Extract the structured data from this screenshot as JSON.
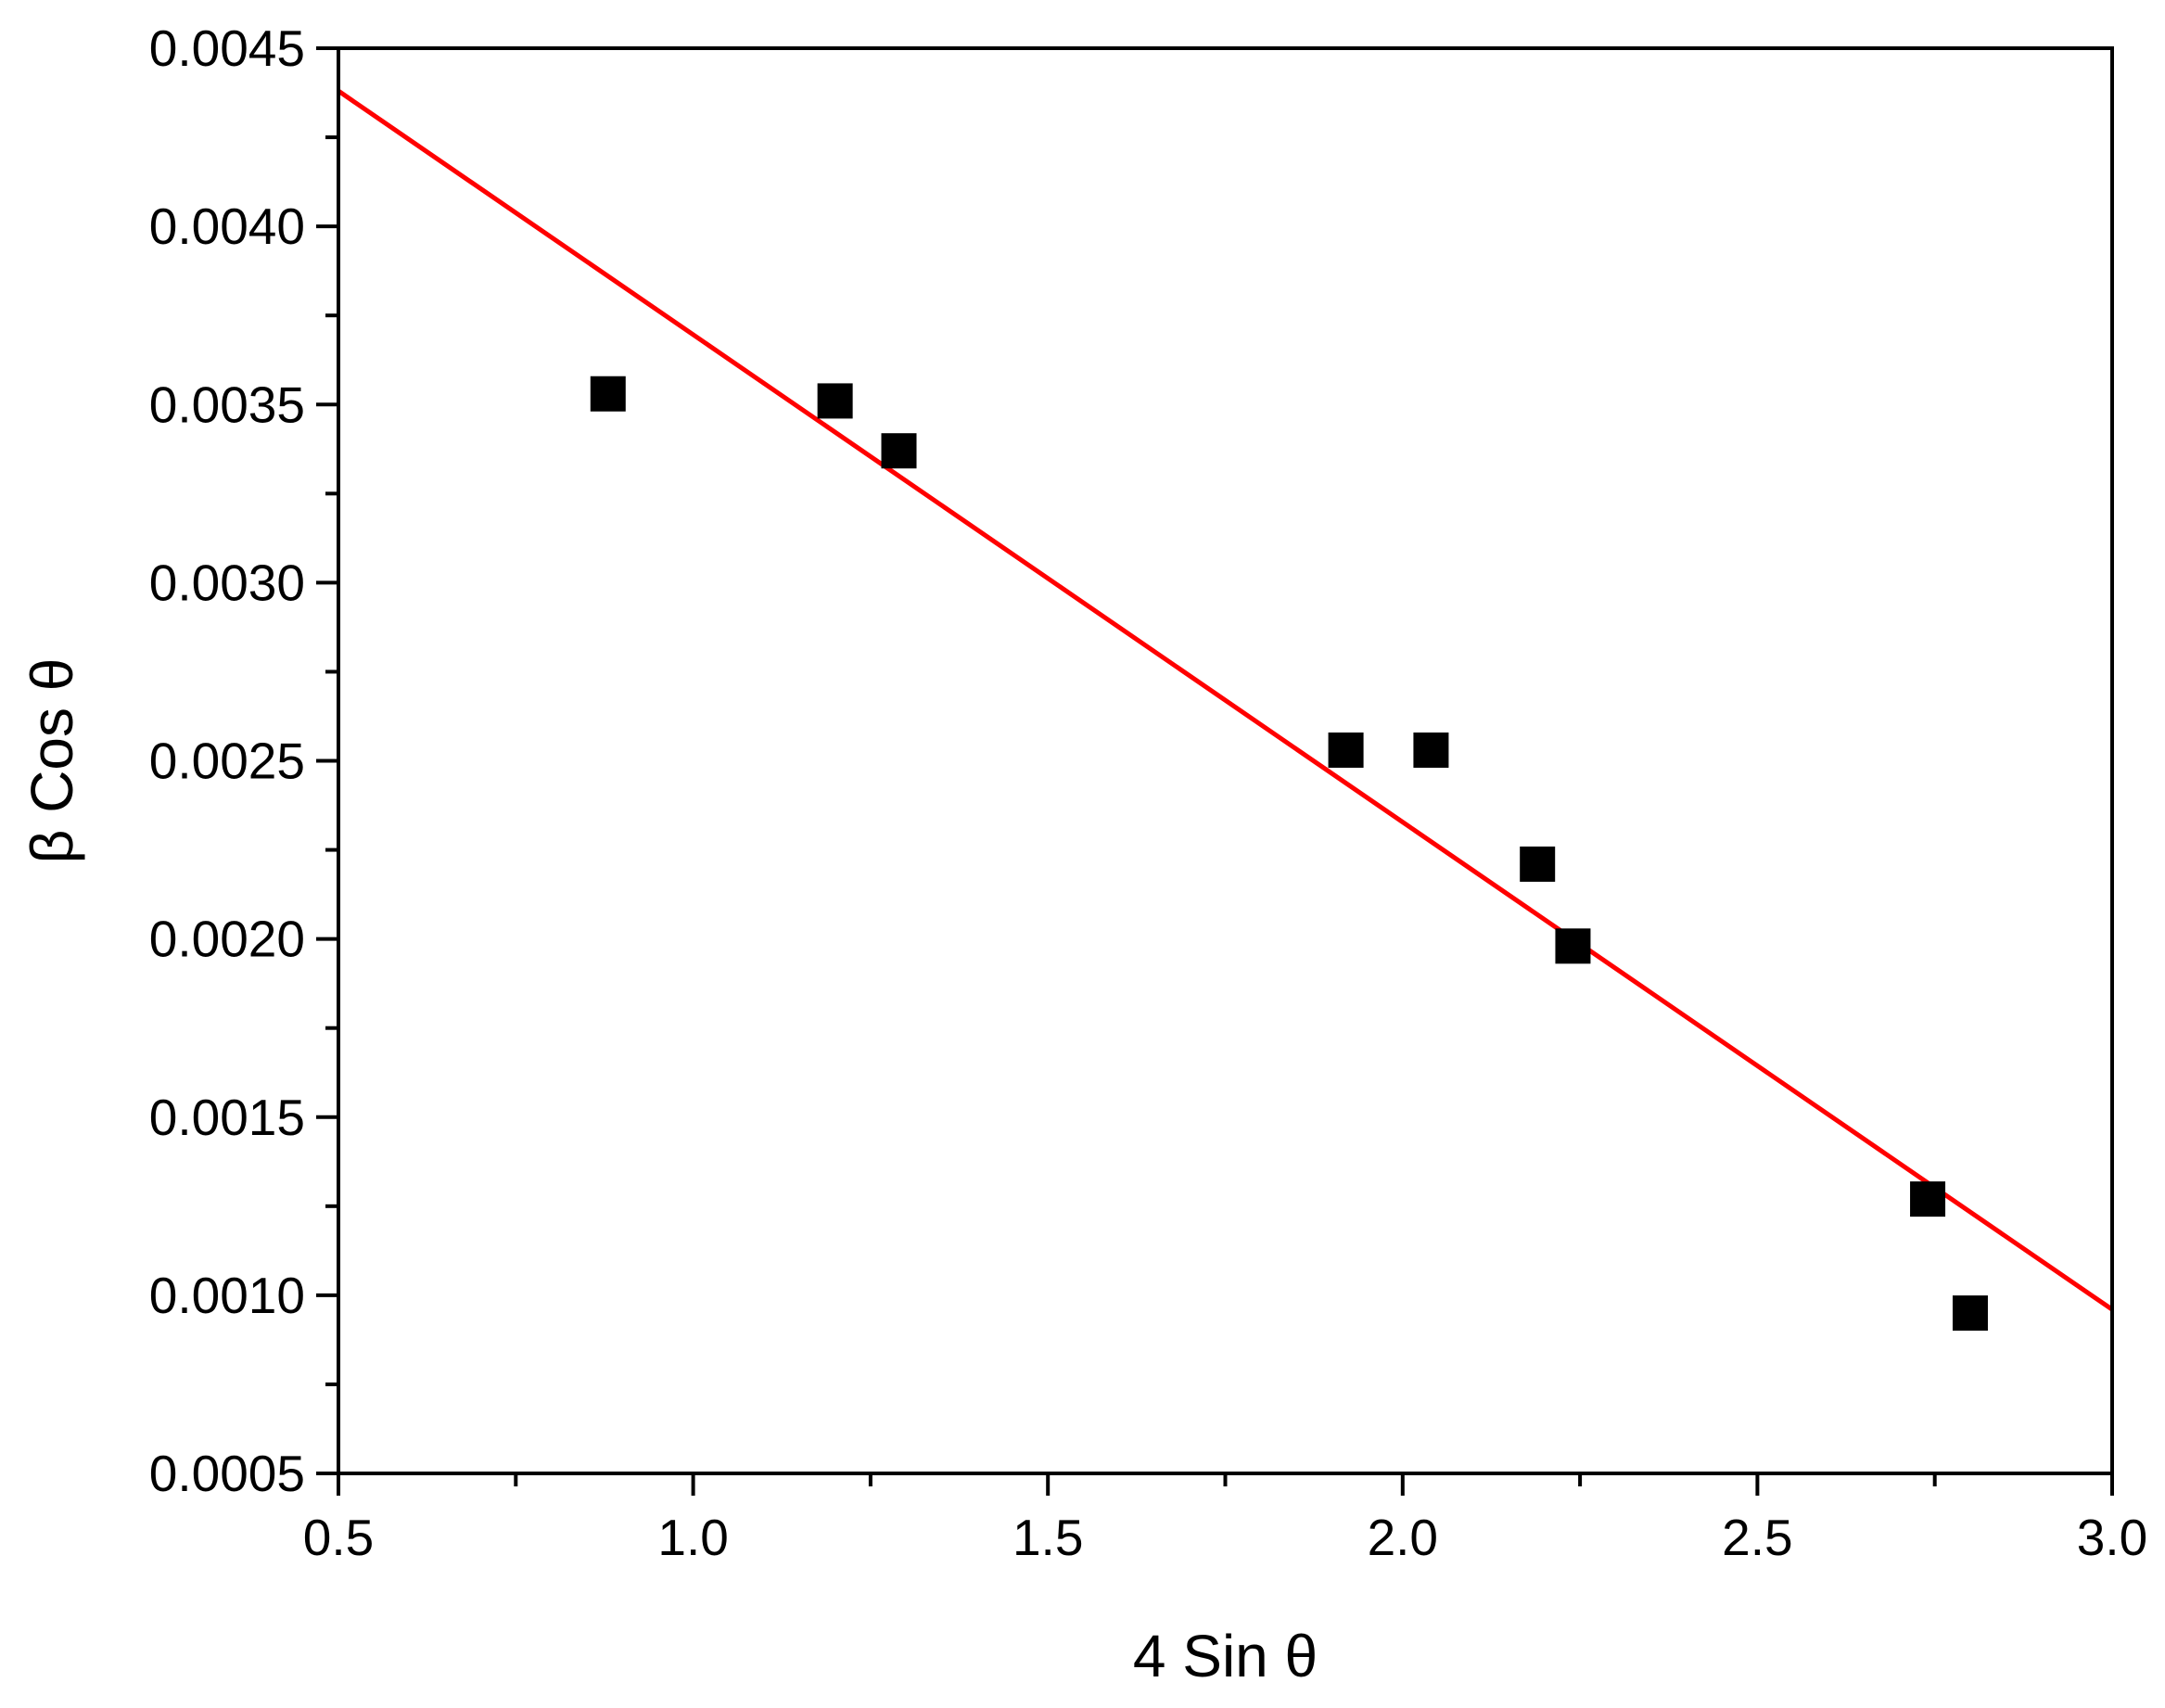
{
  "chart_data": {
    "type": "scatter",
    "title": "",
    "xlabel": "4 Sin θ",
    "ylabel": "β Cos θ",
    "xlim": [
      0.5,
      3.0
    ],
    "ylim": [
      0.0005,
      0.0045
    ],
    "x_ticks": [
      "0.5",
      "1.0",
      "1.5",
      "2.0",
      "2.5",
      "3.0"
    ],
    "y_ticks": [
      "0.0005",
      "0.0010",
      "0.0015",
      "0.0020",
      "0.0025",
      "0.0030",
      "0.0035",
      "0.0040",
      "0.0045"
    ],
    "grid": false,
    "legend": "none",
    "series": [
      {
        "type": "scatter",
        "marker": "square",
        "color": "#000000",
        "x": [
          0.88,
          1.2,
          1.29,
          1.92,
          2.04,
          2.19,
          2.24,
          2.74,
          2.8
        ],
        "y": [
          0.00353,
          0.00351,
          0.00337,
          0.00253,
          0.00253,
          0.00221,
          0.00198,
          0.00127,
          0.00095
        ]
      },
      {
        "type": "line",
        "color": "#ff0000",
        "x": [
          0.5,
          3.0
        ],
        "y": [
          0.00438,
          0.00096
        ]
      }
    ]
  }
}
